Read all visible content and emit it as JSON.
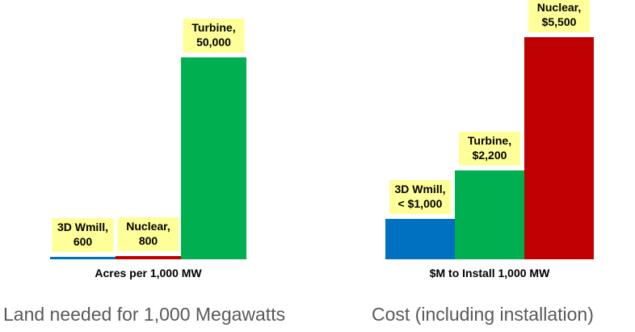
{
  "chart_data": [
    {
      "type": "bar",
      "xlabel": "Acres per 1,000 MW",
      "categories": [
        "3D Wmill",
        "Nuclear",
        "Turbine"
      ],
      "values": [
        600,
        800,
        50000
      ],
      "data_labels": [
        [
          "3D Wmill,",
          "600"
        ],
        [
          "Nuclear,",
          "800"
        ],
        [
          "Turbine,",
          "50,000"
        ]
      ],
      "colors": [
        "#0070c0",
        "#c00000",
        "#00b050"
      ],
      "ylim": [
        0,
        50000
      ],
      "grid": false,
      "caption": "Land needed for 1,000 Megawatts"
    },
    {
      "type": "bar",
      "xlabel": "$M to Install 1,000 MW",
      "categories": [
        "3D Wmill",
        "Turbine",
        "Nuclear"
      ],
      "values": [
        1000,
        2200,
        5500
      ],
      "data_labels": [
        [
          "3D Wmill,",
          "< $1,000"
        ],
        [
          "Turbine,",
          "$2,200"
        ],
        [
          "Nuclear,",
          "$5,500"
        ]
      ],
      "colors": [
        "#0070c0",
        "#00b050",
        "#c00000"
      ],
      "ylim": [
        0,
        5500
      ],
      "grid": false,
      "caption": "Cost (including installation)"
    }
  ]
}
